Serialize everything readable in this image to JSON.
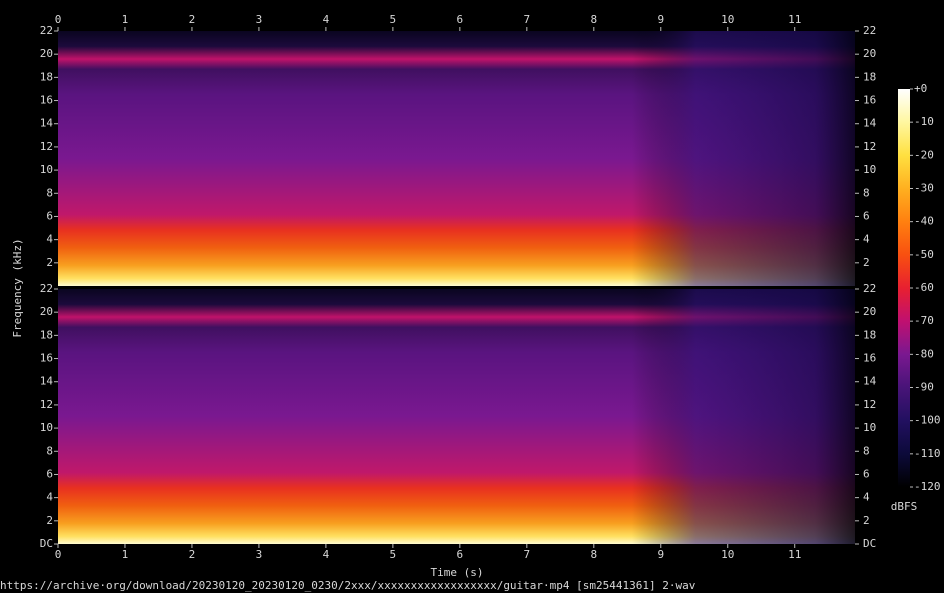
{
  "chart_data": {
    "type": "spectrogram",
    "x_label": "Time (s)",
    "y_label": "Frequency (kHz)",
    "xlim": [
      0,
      11.9
    ],
    "xticks": [
      0,
      1,
      2,
      3,
      4,
      5,
      6,
      7,
      8,
      9,
      10,
      11
    ],
    "panels": [
      {
        "ylim": [
          0,
          22
        ],
        "yticks": [
          2,
          4,
          6,
          8,
          10,
          12,
          14,
          16,
          18,
          20,
          22
        ]
      },
      {
        "ylim": [
          0,
          22
        ],
        "yticks": [
          {
            "value": 0,
            "label": "DC"
          },
          2,
          4,
          6,
          8,
          10,
          12,
          14,
          16,
          18,
          20,
          22
        ]
      }
    ],
    "colorbar": {
      "label": "dBFS",
      "zlim": [
        -120,
        0
      ],
      "ticks": [
        {
          "value": 0,
          "label": "+0"
        },
        -10,
        -20,
        -30,
        -40,
        -50,
        -60,
        -70,
        -80,
        -90,
        -100,
        -110,
        -120
      ],
      "colormap": [
        "#ffffff",
        "#fff7a0",
        "#ffe040",
        "#ffb020",
        "#ff8010",
        "#f85010",
        "#e82030",
        "#c01070",
        "#7a1890",
        "#481478",
        "#221060",
        "#0c0a3a",
        "#000000"
      ]
    },
    "footer": "https://archive·org/download/20230120_20230120_0230/2xxx/xxxxxxxxxxxxxxxxxx/guitar·mp4 [sm25441361] 2·wav"
  }
}
